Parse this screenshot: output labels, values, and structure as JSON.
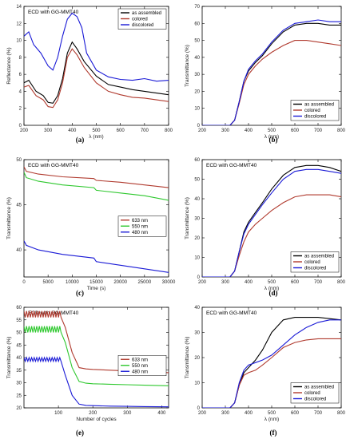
{
  "chart_data": [
    {
      "panel": "(a)",
      "type": "line",
      "title": "ECD with GG-MMT40",
      "xlabel": "λ (nm)",
      "ylabel": "Reflectance (%)",
      "xlim": [
        200,
        800
      ],
      "ylim": [
        0,
        14
      ],
      "xticks": [
        200,
        300,
        400,
        500,
        600,
        700,
        800
      ],
      "yticks": [
        0,
        2,
        4,
        6,
        8,
        10,
        12,
        14
      ],
      "legend": "top-right",
      "series": [
        {
          "name": "as assembled",
          "color": "#000000",
          "x": [
            200,
            220,
            250,
            280,
            300,
            320,
            340,
            360,
            380,
            400,
            420,
            450,
            500,
            550,
            600,
            650,
            700,
            750,
            800
          ],
          "y": [
            5.0,
            5.3,
            4.0,
            3.5,
            2.7,
            2.6,
            3.5,
            5.5,
            8.5,
            9.8,
            9.0,
            7.5,
            5.8,
            4.8,
            4.5,
            4.2,
            4.0,
            3.8,
            3.6
          ]
        },
        {
          "name": "colored",
          "color": "#b03a2e",
          "x": [
            200,
            220,
            250,
            280,
            300,
            320,
            340,
            360,
            380,
            400,
            420,
            450,
            500,
            550,
            600,
            650,
            700,
            750,
            800
          ],
          "y": [
            4.5,
            4.7,
            3.5,
            3.0,
            2.2,
            2.1,
            3.0,
            5.0,
            8.0,
            9.0,
            8.3,
            6.8,
            5.0,
            4.0,
            3.6,
            3.3,
            3.2,
            3.0,
            2.8
          ]
        },
        {
          "name": "discolored",
          "color": "#1a1ad6",
          "x": [
            200,
            220,
            240,
            270,
            300,
            320,
            340,
            360,
            380,
            400,
            420,
            440,
            460,
            500,
            550,
            600,
            650,
            700,
            750,
            800
          ],
          "y": [
            10.5,
            11.0,
            9.5,
            8.5,
            7.0,
            6.5,
            8.0,
            10.5,
            12.5,
            13.2,
            12.8,
            11.5,
            8.5,
            6.5,
            5.7,
            5.4,
            5.3,
            5.5,
            5.2,
            5.3
          ]
        }
      ]
    },
    {
      "panel": "(b)",
      "type": "line",
      "title": "",
      "xlabel": "λ (nm)",
      "ylabel": "Transmittance (%)",
      "xlim": [
        200,
        800
      ],
      "ylim": [
        0,
        70
      ],
      "xticks": [
        200,
        300,
        400,
        500,
        600,
        700,
        800
      ],
      "yticks": [
        0,
        10,
        20,
        30,
        40,
        50,
        60,
        70
      ],
      "legend": "bottom-right",
      "series": [
        {
          "name": "as assembled",
          "color": "#000000",
          "x": [
            200,
            320,
            340,
            360,
            380,
            400,
            430,
            460,
            500,
            550,
            600,
            650,
            700,
            750,
            800
          ],
          "y": [
            0,
            0,
            3,
            14,
            26,
            32,
            37,
            41,
            48,
            55,
            59,
            60,
            60,
            59,
            59
          ]
        },
        {
          "name": "colored",
          "color": "#b03a2e",
          "x": [
            200,
            320,
            340,
            360,
            380,
            400,
            430,
            460,
            500,
            550,
            600,
            650,
            700,
            750,
            800
          ],
          "y": [
            0,
            0,
            3,
            13,
            24,
            30,
            35,
            39,
            43,
            47,
            50,
            50,
            49,
            48,
            47
          ]
        },
        {
          "name": "discolored",
          "color": "#1a1ad6",
          "x": [
            200,
            320,
            340,
            360,
            380,
            400,
            430,
            460,
            500,
            550,
            600,
            650,
            700,
            750,
            800
          ],
          "y": [
            0,
            0,
            3,
            14,
            26,
            33,
            38,
            42,
            49,
            56,
            60,
            61,
            62,
            61,
            61
          ]
        }
      ]
    },
    {
      "panel": "(c)",
      "type": "line",
      "title": "ECD with GG-MMT40",
      "xlabel": "Time (s)",
      "ylabel": "Transmittance (%)",
      "xlim": [
        0,
        30000
      ],
      "ylim": [
        37,
        50
      ],
      "xticks": [
        0,
        5000,
        10000,
        15000,
        20000,
        25000,
        30000
      ],
      "yticks": [
        40,
        45,
        50
      ],
      "legend": "center-right",
      "series": [
        {
          "name": "633 nm",
          "color": "#b03a2e",
          "x": [
            0,
            500,
            3000,
            8000,
            14500,
            15000,
            20000,
            25000,
            30000
          ],
          "y": [
            49.2,
            48.7,
            48.4,
            48.1,
            47.9,
            47.7,
            47.5,
            47.2,
            46.9
          ]
        },
        {
          "name": "550 nm",
          "color": "#2ec82e",
          "x": [
            0,
            500,
            3000,
            8000,
            14500,
            15000,
            20000,
            25000,
            30000
          ],
          "y": [
            48.6,
            48.0,
            47.6,
            47.2,
            46.9,
            46.6,
            46.3,
            46.0,
            45.5
          ]
        },
        {
          "name": "480 nm",
          "color": "#1a1ad6",
          "x": [
            0,
            500,
            3000,
            8000,
            14500,
            15000,
            20000,
            25000,
            30000
          ],
          "y": [
            41.0,
            40.5,
            40.0,
            39.5,
            39.1,
            38.7,
            38.3,
            37.9,
            37.5
          ]
        }
      ]
    },
    {
      "panel": "(d)",
      "type": "line",
      "title": "ECD with GG-MMT40",
      "xlabel": "λ (nm)",
      "ylabel": "Transmittance (%)",
      "xlim": [
        200,
        800
      ],
      "ylim": [
        0,
        60
      ],
      "xticks": [
        200,
        300,
        400,
        500,
        600,
        700,
        800
      ],
      "yticks": [
        0,
        10,
        20,
        30,
        40,
        50,
        60
      ],
      "legend": "bottom-right",
      "series": [
        {
          "name": "as assembled",
          "color": "#000000",
          "x": [
            200,
            320,
            340,
            360,
            380,
            400,
            430,
            460,
            500,
            550,
            600,
            650,
            700,
            750,
            800
          ],
          "y": [
            0,
            0,
            3,
            13,
            23,
            28,
            33,
            38,
            45,
            52,
            56,
            57,
            57,
            56,
            54
          ]
        },
        {
          "name": "colored",
          "color": "#b03a2e",
          "x": [
            200,
            320,
            340,
            360,
            380,
            400,
            430,
            460,
            500,
            550,
            600,
            650,
            700,
            750,
            800
          ],
          "y": [
            0,
            0,
            3,
            11,
            18,
            23,
            27,
            30,
            34,
            38,
            41,
            42,
            42,
            42,
            41
          ]
        },
        {
          "name": "discolored",
          "color": "#1a1ad6",
          "x": [
            200,
            320,
            340,
            360,
            380,
            400,
            430,
            460,
            500,
            550,
            600,
            650,
            700,
            750,
            800
          ],
          "y": [
            0,
            0,
            3,
            13,
            22,
            27,
            32,
            37,
            43,
            50,
            54,
            55,
            55,
            54,
            53
          ]
        }
      ]
    },
    {
      "panel": "(e)",
      "type": "line",
      "title": "ECD with GG-MMT40",
      "xlabel": "Number of cycles",
      "ylabel": "Transmittance (%)",
      "xlim": [
        0,
        420
      ],
      "ylim": [
        20,
        60
      ],
      "xticks": [
        100,
        200,
        300,
        400
      ],
      "yticks": [
        20,
        25,
        30,
        35,
        40,
        45,
        50,
        55,
        60
      ],
      "legend": "center-right",
      "series": [
        {
          "name": "633 nm",
          "color": "#b03a2e",
          "x": [
            0,
            50,
            100,
            120,
            140,
            160,
            180,
            200,
            250,
            300,
            350,
            420
          ],
          "y": [
            58.5,
            58.0,
            56.5,
            52,
            42,
            36,
            35.5,
            35.3,
            35,
            34.7,
            34.4,
            34
          ],
          "oscillation": [
            58.5,
            56.0
          ]
        },
        {
          "name": "550 nm",
          "color": "#2ec82e",
          "x": [
            0,
            50,
            100,
            120,
            140,
            160,
            180,
            200,
            250,
            300,
            350,
            420
          ],
          "y": [
            52.5,
            52.0,
            50.5,
            46,
            36,
            30.5,
            29.8,
            29.6,
            29.4,
            29.2,
            29.0,
            28.8
          ],
          "oscillation": [
            52.5,
            50.0
          ]
        },
        {
          "name": "480 nm",
          "color": "#1a1ad6",
          "x": [
            0,
            50,
            100,
            120,
            140,
            160,
            180,
            200,
            250,
            300,
            350,
            420
          ],
          "y": [
            40.0,
            39.5,
            38.0,
            33,
            25,
            21.5,
            21.0,
            20.9,
            20.7,
            20.6,
            20.5,
            20.4
          ],
          "oscillation": [
            40.0,
            38.5
          ]
        }
      ]
    },
    {
      "panel": "(f)",
      "type": "line",
      "title": "ECD with GG-MMT40",
      "xlabel": "λ (nm)",
      "ylabel": "Transmittance (%)",
      "xlim": [
        200,
        800
      ],
      "ylim": [
        0,
        40
      ],
      "xticks": [
        200,
        300,
        400,
        500,
        600,
        700,
        800
      ],
      "yticks": [
        0,
        10,
        20,
        30,
        40
      ],
      "legend": "bottom-right",
      "series": [
        {
          "name": "as assembled",
          "color": "#000000",
          "x": [
            200,
            320,
            340,
            360,
            380,
            400,
            430,
            460,
            500,
            550,
            600,
            650,
            700,
            750,
            800
          ],
          "y": [
            0,
            0,
            2,
            9,
            14,
            16,
            19,
            23,
            30,
            35,
            36,
            36,
            36,
            35.5,
            35
          ]
        },
        {
          "name": "colored",
          "color": "#b03a2e",
          "x": [
            200,
            320,
            340,
            360,
            380,
            400,
            430,
            460,
            500,
            550,
            600,
            650,
            700,
            750,
            800
          ],
          "y": [
            0,
            0,
            2,
            9,
            13,
            14,
            15,
            17,
            20,
            24,
            26,
            27,
            27.5,
            27.5,
            27.5
          ]
        },
        {
          "name": "discolored",
          "color": "#1a1ad6",
          "x": [
            200,
            320,
            340,
            360,
            380,
            400,
            430,
            460,
            500,
            550,
            600,
            650,
            700,
            750,
            800
          ],
          "y": [
            0,
            0,
            2,
            10,
            15,
            17,
            18,
            19,
            21,
            25,
            29,
            32,
            34,
            35,
            35
          ]
        }
      ]
    }
  ]
}
